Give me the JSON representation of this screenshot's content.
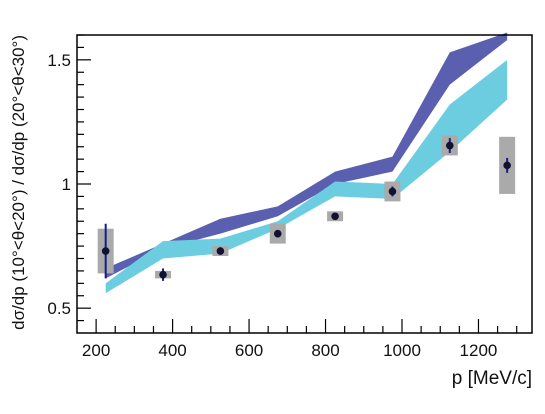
{
  "chart_data": {
    "type": "scatter",
    "title": "",
    "xlabel": "p [MeV/c]",
    "ylabel": "dσ/dp (10°<θ<20°) / dσ/dp (20°<θ<30°)",
    "xlim": [
      150,
      1340
    ],
    "ylim": [
      0.4,
      1.6
    ],
    "xticks": [
      {
        "value": 200,
        "label": "200"
      },
      {
        "value": 400,
        "label": "400"
      },
      {
        "value": 600,
        "label": "600"
      },
      {
        "value": 800,
        "label": "800"
      },
      {
        "value": 1000,
        "label": "1000"
      },
      {
        "value": 1200,
        "label": "1200"
      }
    ],
    "yticks": [
      {
        "value": 0.5,
        "label": "0.5"
      },
      {
        "value": 1.0,
        "label": "1"
      },
      {
        "value": 1.5,
        "label": "1.5"
      }
    ],
    "grid": false,
    "legend": "none",
    "bands": [
      {
        "color": "#5a5fb0",
        "x": [
          225,
          375,
          525,
          675,
          825,
          975,
          1125,
          1275
        ],
        "lower": [
          0.62,
          0.74,
          0.8,
          0.87,
          1.0,
          1.05,
          1.4,
          1.58
        ],
        "upper": [
          0.66,
          0.76,
          0.86,
          0.91,
          1.05,
          1.11,
          1.53,
          1.61
        ]
      },
      {
        "color": "#6ccde0",
        "x": [
          225,
          375,
          525,
          675,
          825,
          975,
          1125,
          1275
        ],
        "lower": [
          0.56,
          0.7,
          0.72,
          0.82,
          0.95,
          0.94,
          1.13,
          1.34
        ],
        "upper": [
          0.6,
          0.77,
          0.78,
          0.85,
          1.01,
          1.0,
          1.32,
          1.5
        ]
      }
    ],
    "points": {
      "color": "#111133",
      "x": [
        225,
        375,
        525,
        675,
        825,
        975,
        1125,
        1275
      ],
      "y": [
        0.73,
        0.635,
        0.73,
        0.8,
        0.87,
        0.97,
        1.155,
        1.075
      ],
      "stat_err": [
        0.11,
        0.025,
        0.015,
        0.015,
        0.012,
        0.02,
        0.03,
        0.03
      ],
      "sys_err": [
        0.09,
        0.015,
        0.02,
        0.04,
        0.02,
        0.04,
        0.04,
        0.115
      ]
    }
  }
}
